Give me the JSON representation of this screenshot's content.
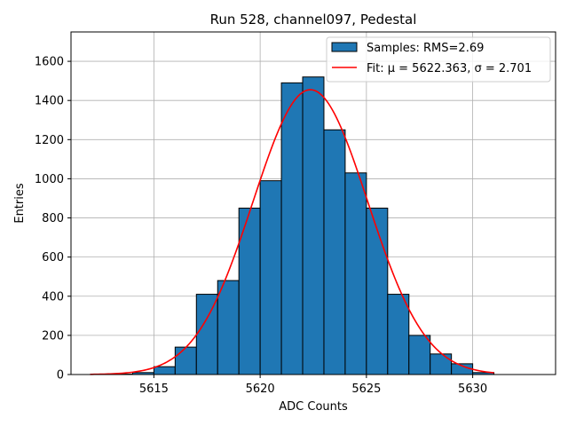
{
  "chart_data": {
    "type": "bar",
    "title": "Run 528, channel097, Pedestal",
    "xlabel": "ADC Counts",
    "ylabel": "Entries",
    "xlim": [
      5611.1,
      5633.9
    ],
    "ylim": [
      0,
      1750
    ],
    "xticks": [
      5615,
      5620,
      5625,
      5630
    ],
    "yticks": [
      0,
      200,
      400,
      600,
      800,
      1000,
      1200,
      1400,
      1600
    ],
    "grid": true,
    "legend_position": "top-right",
    "histogram": {
      "name": "Samples: RMS=2.69",
      "color": "#1f77b4",
      "bin_edges": [
        5613,
        5614,
        5615,
        5616,
        5617,
        5618,
        5619,
        5620,
        5621,
        5622,
        5623,
        5624,
        5625,
        5626,
        5627,
        5628,
        5629,
        5630,
        5631
      ],
      "values": [
        2,
        10,
        40,
        140,
        410,
        480,
        850,
        990,
        1490,
        1520,
        1250,
        1030,
        850,
        410,
        200,
        105,
        55,
        10
      ]
    },
    "fit": {
      "name": "Fit: μ = 5622.363, σ = 2.701",
      "color": "#ff0000",
      "mu": 5622.363,
      "sigma": 2.701,
      "amplitude": 1455,
      "x_range": [
        5612,
        5631
      ]
    }
  }
}
